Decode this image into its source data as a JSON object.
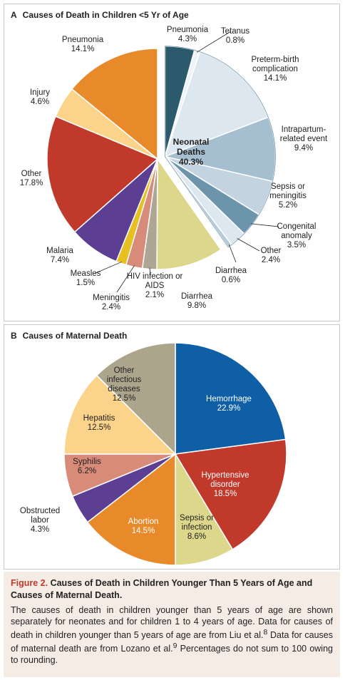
{
  "chart_data": [
    {
      "type": "pie",
      "panel": "A",
      "title": "Causes of Death in Children <5 Yr of Age",
      "annotation": "Neonatal Deaths 40.3%",
      "categories": [
        "Pneumonia",
        "Tetanus",
        "Preterm-birth complication",
        "Intrapartum-related event",
        "Sepsis or meningitis",
        "Congenital anomaly",
        "Other",
        "Diarrhea",
        "Diarrhea",
        "HIV infection or AIDS",
        "Meningitis",
        "Measles",
        "Malaria",
        "Other",
        "Injury",
        "Pneumonia"
      ],
      "values": [
        4.3,
        0.8,
        14.1,
        9.4,
        5.2,
        3.5,
        2.4,
        0.6,
        9.8,
        2.1,
        2.4,
        1.5,
        7.4,
        17.8,
        4.6,
        14.1
      ],
      "value_labels": [
        "4.3%",
        "0.8%",
        "14.1%",
        "9.4%",
        "5.2%",
        "3.5%",
        "2.4%",
        "0.6%",
        "9.8%",
        "2.1%",
        "2.4%",
        "1.5%",
        "7.4%",
        "17.8%",
        "4.6%",
        "14.1%"
      ],
      "colors": [
        "#2b5a6d",
        "#eef3f7",
        "#dce7ef",
        "#a6bfd0",
        "#c3d4e0",
        "#6c95ab",
        "#dce7ef",
        "#b5c9d7",
        "#ddd78c",
        "#aea594",
        "#d98b79",
        "#e6bf21",
        "#5c3e92",
        "#c0392b",
        "#fbd38b",
        "#e8892a"
      ]
    },
    {
      "type": "pie",
      "panel": "B",
      "title": "Causes of Maternal Death",
      "categories": [
        "Hemorrhage",
        "Hypertensive disorder",
        "Sepsis or infection",
        "Abortion",
        "Obstructed labor",
        "Syphilis",
        "Hepatitis",
        "Other infectious diseases"
      ],
      "values": [
        22.9,
        18.5,
        8.6,
        14.5,
        4.3,
        6.2,
        12.5,
        12.5
      ],
      "value_labels": [
        "22.9%",
        "18.5%",
        "8.6%",
        "14.5%",
        "4.3%",
        "6.2%",
        "12.5%",
        "12.5%"
      ],
      "colors": [
        "#0e5fa6",
        "#c0392b",
        "#ddd78c",
        "#e8892a",
        "#5c3e92",
        "#d98b79",
        "#fbd38b",
        "#aca58b"
      ]
    }
  ],
  "caption": {
    "label": "Figure 2.",
    "title": "Causes of Death in Children Younger Than 5 Years of Age and Causes of Maternal Death.",
    "body": [
      "The causes of death in children younger than 5 years of age are shown separately for neonates and for children 1 to 4 years of age. Data for causes of death in children younger than 5 years of age are from Liu et al.",
      "8",
      " Data for causes of maternal death are from Lozano et al.",
      "9",
      " Percentages do not sum to 100 owing to rounding."
    ]
  }
}
